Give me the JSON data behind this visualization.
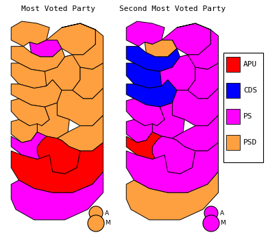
{
  "title1": "Most Voted Party",
  "title2": "Second Most Voted Party",
  "legend_entries": [
    {
      "label": "APU",
      "color": "#FF0000"
    },
    {
      "label": "CDS",
      "color": "#0000FF"
    },
    {
      "label": "PS",
      "color": "#FF00FF"
    },
    {
      "label": "PSD",
      "color": "#FFA040"
    }
  ],
  "azores_color_map1": "#FFA040",
  "azores_color_map2": "#FF00FF",
  "madeira_color_map1": "#FFA040",
  "madeira_color_map2": "#FF00FF",
  "districts_map1": {
    "Viana do Castelo": "#FFA040",
    "Braga": "#FF00FF",
    "Vila Real": "#FFA040",
    "Braganca": "#FFA040",
    "Porto": "#FFA040",
    "Aveiro": "#FFA040",
    "Viseu": "#FFA040",
    "Guarda": "#FFA040",
    "Coimbra": "#FFA040",
    "Castelo Branco": "#FFA040",
    "Leiria": "#FFA040",
    "Santarem": "#FFA040",
    "Lisboa": "#FFA040",
    "Setubal": "#FF00FF",
    "Portalegre": "#FFA040",
    "Evora": "#FF0000",
    "Beja": "#FF0000",
    "Faro": "#FF00FF"
  },
  "districts_map2": {
    "Viana do Castelo": "#FF00FF",
    "Braga": "#FFA040",
    "Vila Real": "#FF00FF",
    "Braganca": "#FF00FF",
    "Porto": "#0000FF",
    "Aveiro": "#0000FF",
    "Viseu": "#FF00FF",
    "Guarda": "#FF00FF",
    "Coimbra": "#0000FF",
    "Castelo Branco": "#FF00FF",
    "Leiria": "#FF00FF",
    "Santarem": "#FF00FF",
    "Lisboa": "#FF00FF",
    "Setubal": "#FF0000",
    "Portalegre": "#FF00FF",
    "Evora": "#FF00FF",
    "Beja": "#FF00FF",
    "Faro": "#FFA040"
  },
  "bg_color": "#FFFFFF",
  "border_color": "#000000",
  "title_fontsize": 8,
  "legend_fontsize": 8
}
